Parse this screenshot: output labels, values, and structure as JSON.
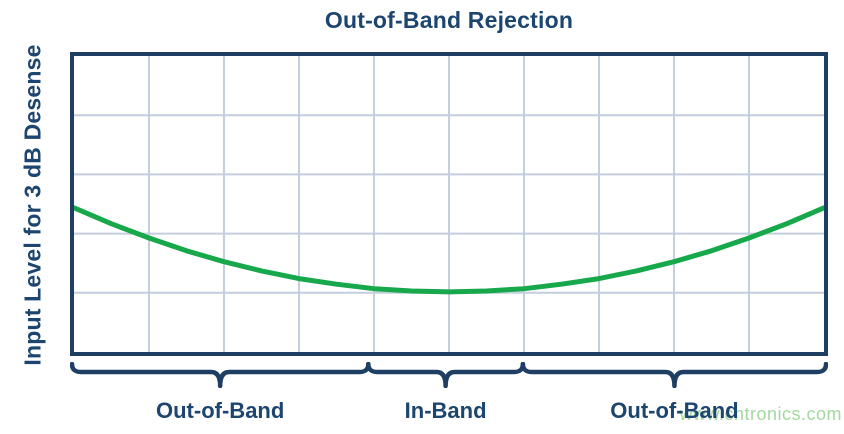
{
  "watermark": "www.cntronics.com",
  "colors": {
    "background": "#ffffff",
    "text_navy": "#1c456f",
    "border_navy": "#1e3f63",
    "grid_blue_gray": "#c4cedd",
    "curve_green": "#17a84b",
    "watermark_green": "#a4d8a0"
  },
  "chart_data": {
    "type": "line",
    "title": "Out-of-Band Rejection",
    "xlabel": "",
    "ylabel": "Input Level for 3 dB Desense",
    "x_tick_labels": [],
    "y_tick_labels": [],
    "axis_note": "qualitative plot - no numeric scales shown",
    "grid": {
      "show": true,
      "columns": 10,
      "rows": 5
    },
    "series": [
      {
        "name": "input-level-for-3-db-desense",
        "color": "#17a84b",
        "points": [
          [
            0.0,
            0.487
          ],
          [
            0.05,
            0.433
          ],
          [
            0.1,
            0.385
          ],
          [
            0.15,
            0.342
          ],
          [
            0.2,
            0.305
          ],
          [
            0.25,
            0.274
          ],
          [
            0.3,
            0.248
          ],
          [
            0.35,
            0.229
          ],
          [
            0.4,
            0.214
          ],
          [
            0.45,
            0.206
          ],
          [
            0.5,
            0.203
          ],
          [
            0.55,
            0.206
          ],
          [
            0.6,
            0.214
          ],
          [
            0.65,
            0.229
          ],
          [
            0.7,
            0.248
          ],
          [
            0.75,
            0.274
          ],
          [
            0.8,
            0.305
          ],
          [
            0.85,
            0.342
          ],
          [
            0.9,
            0.385
          ],
          [
            0.95,
            0.433
          ],
          [
            1.0,
            0.487
          ]
        ]
      }
    ],
    "x_regions": [
      {
        "label": "Out-of-Band",
        "start_frac": 0.0,
        "end_frac": 0.393
      },
      {
        "label": "In-Band",
        "start_frac": 0.393,
        "end_frac": 0.598
      },
      {
        "label": "Out-of-Band",
        "start_frac": 0.598,
        "end_frac": 1.0
      }
    ]
  }
}
